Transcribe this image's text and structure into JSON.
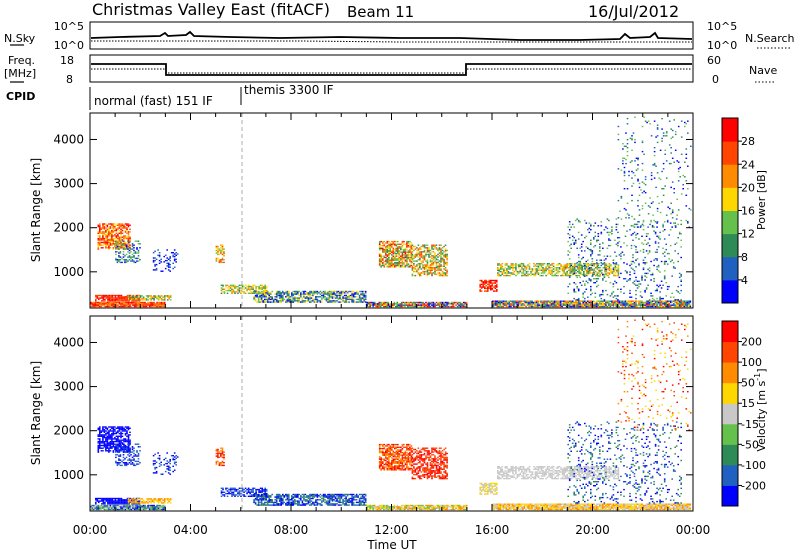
{
  "header": {
    "station": "Christmas Valley East (fitACF)",
    "beam": "Beam 11",
    "date": "16/Jul/2012"
  },
  "strips": {
    "nsky_label": "N.Sky",
    "nsearch_label": "N.Search",
    "nsky_ticks": [
      "10^5",
      "10^0"
    ],
    "nsearch_ticks": [
      "10^5",
      "10^0"
    ],
    "freq_label_1": "Freq.",
    "freq_label_2": "[MHz]",
    "freq_ticks": [
      "18",
      "8"
    ],
    "nave_label": "Nave",
    "nave_ticks": [
      "60",
      "0"
    ],
    "cpid_label": "CPID",
    "cpid_modes": [
      {
        "label": "normal (fast) 151 IF",
        "start_hour": 0.0
      },
      {
        "label": "themis 3300 IF",
        "start_hour": 6.0
      }
    ]
  },
  "chart_data": [
    {
      "type": "heatmap",
      "name": "power",
      "ylabel": "Slant Range [km]",
      "xlabel": "",
      "xlim": [
        0,
        24
      ],
      "ylim": [
        180,
        4600
      ],
      "yticks": [
        "1000",
        "2000",
        "3000",
        "4000"
      ],
      "colorbar": {
        "label": "Power [dB]",
        "ticks": [
          "4",
          "8",
          "12",
          "16",
          "20",
          "24",
          "28"
        ],
        "colors": [
          "#0000ff",
          "#2060c0",
          "#2e8b57",
          "#66c04c",
          "#ffd700",
          "#ff8c00",
          "#ff4500",
          "#ff0000"
        ]
      }
    },
    {
      "type": "heatmap",
      "name": "velocity",
      "ylabel": "Slant Range [km]",
      "xlabel": "Time UT",
      "xlim": [
        0,
        24
      ],
      "ylim": [
        180,
        4600
      ],
      "xticks": [
        "00:00",
        "04:00",
        "08:00",
        "12:00",
        "16:00",
        "20:00",
        "00:00"
      ],
      "yticks": [
        "1000",
        "2000",
        "3000",
        "4000"
      ],
      "colorbar": {
        "label": "Velocity [m s",
        "label_exp": "-1",
        "label_end": "]",
        "ticks": [
          "200",
          "100",
          "50",
          "15",
          "-15",
          "-50",
          "-100",
          "-200"
        ],
        "colors": [
          "#0000ff",
          "#2060c0",
          "#2e8b57",
          "#66c04c",
          "#c8c8c8",
          "#ffd700",
          "#ff8c00",
          "#ff4500",
          "#ff0000"
        ]
      }
    }
  ]
}
